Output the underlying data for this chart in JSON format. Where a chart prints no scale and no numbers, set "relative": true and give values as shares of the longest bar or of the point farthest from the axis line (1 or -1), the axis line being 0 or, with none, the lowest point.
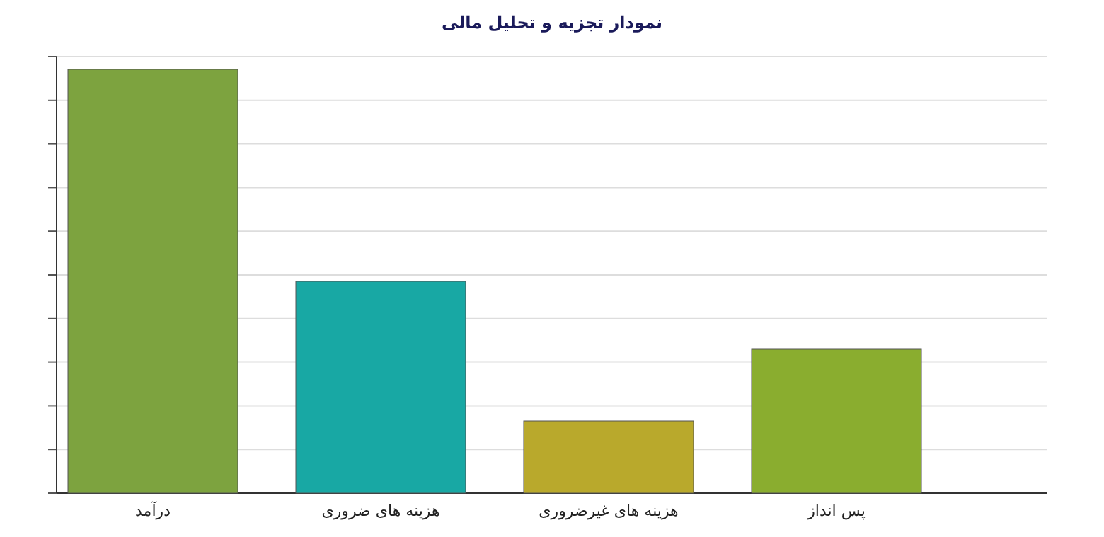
{
  "chart_data": {
    "type": "bar",
    "title": "نمودار تجزیه و تحلیل مالی",
    "relative": true,
    "grid": true,
    "categories": [
      "درآمد",
      "هزینه های ضروری",
      "هزینه های غیرضروری",
      "پس انداز"
    ],
    "values": [
      1,
      0.5,
      0.17,
      0.34
    ],
    "colors": [
      "#7da33f",
      "#18a8a4",
      "#b9a92c",
      "#8aad2f"
    ]
  }
}
